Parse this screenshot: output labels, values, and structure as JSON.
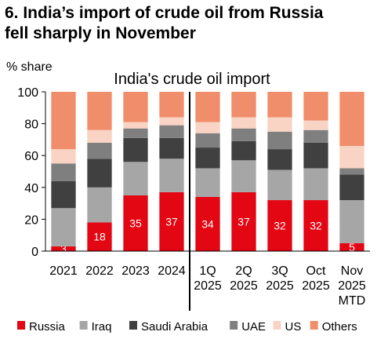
{
  "heading": {
    "line1": "6. India’s import of crude oil from Russia",
    "line2": "fell sharply in November"
  },
  "chart_data": {
    "type": "bar",
    "stacked": true,
    "title": "India's crude oil import",
    "ylabel": "% share",
    "ylim": [
      0,
      100
    ],
    "yticks": [
      0,
      20,
      40,
      60,
      80,
      100
    ],
    "grid": false,
    "legend_position": "bottom",
    "categories": [
      [
        "2021"
      ],
      [
        "2022"
      ],
      [
        "2023"
      ],
      [
        "2024"
      ],
      [
        "1Q",
        "2025"
      ],
      [
        "2Q",
        "2025"
      ],
      [
        "3Q",
        "2025"
      ],
      [
        "Oct",
        "2025"
      ],
      [
        "Nov",
        "2025",
        "MTD"
      ]
    ],
    "separator_after_category": 3,
    "series": [
      {
        "name": "Russia",
        "color": "#e30613",
        "values": [
          3,
          18,
          35,
          37,
          34,
          37,
          32,
          32,
          5
        ],
        "labels": [
          "3",
          "18",
          "35",
          "37",
          "34",
          "37",
          "32",
          "32",
          "5"
        ]
      },
      {
        "name": "Iraq",
        "color": "#a6a6a6",
        "values": [
          24,
          22,
          21,
          21,
          18,
          20,
          19,
          20,
          27
        ]
      },
      {
        "name": "Saudi Arabia",
        "color": "#404040",
        "values": [
          17,
          18,
          15,
          13,
          13,
          12,
          13,
          16,
          16
        ]
      },
      {
        "name": "UAE",
        "color": "#7f7f7f",
        "values": [
          11,
          10,
          6,
          8,
          9,
          8,
          11,
          8,
          4
        ]
      },
      {
        "name": "US",
        "color": "#f9d3c3",
        "values": [
          9,
          8,
          4,
          5,
          7,
          7,
          9,
          6,
          14
        ]
      },
      {
        "name": "Others",
        "color": "#f08d6a",
        "values": [
          36,
          24,
          19,
          16,
          19,
          16,
          16,
          18,
          34
        ]
      }
    ]
  }
}
